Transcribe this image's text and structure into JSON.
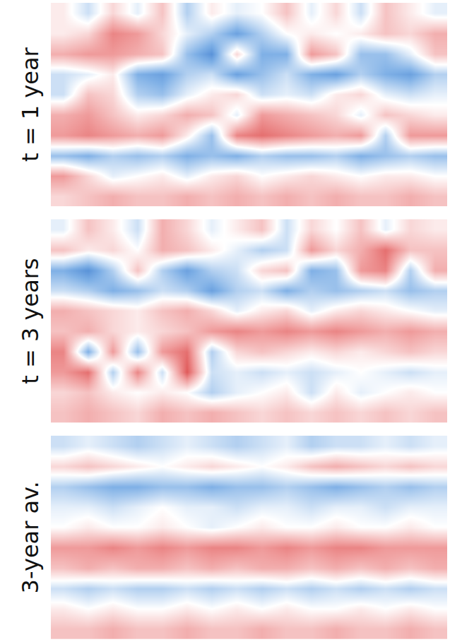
{
  "chart_data": [
    {
      "type": "heatmap",
      "title": "t = 1 year",
      "zlim": [
        -1,
        1
      ],
      "tick_labels": false,
      "cells": [
        [
          0.1,
          -0.2,
          0.2,
          -0.1,
          0.3,
          -0.3,
          0.1,
          -0.1,
          0.0,
          0.3,
          -0.1,
          0.2,
          -0.2,
          0.3,
          0.1,
          -0.1
        ],
        [
          0.1,
          0.2,
          0.6,
          0.5,
          0.2,
          -0.1,
          -0.3,
          -0.6,
          -0.3,
          0.0,
          0.1,
          0.0,
          0.1,
          0.3,
          0.2,
          0.4
        ],
        [
          0.4,
          0.5,
          0.5,
          0.4,
          0.3,
          -0.4,
          -0.7,
          0.2,
          -0.5,
          -0.5,
          0.5,
          0.3,
          -0.4,
          -0.4,
          -0.1,
          0.3
        ],
        [
          -0.2,
          -0.1,
          0.1,
          -0.5,
          -0.6,
          -0.3,
          -0.2,
          -0.6,
          -0.4,
          -0.2,
          -0.5,
          -0.6,
          -0.3,
          -0.5,
          -0.6,
          -0.3
        ],
        [
          -0.2,
          0.3,
          0.2,
          -0.3,
          -0.4,
          -0.1,
          0.1,
          0.2,
          -0.2,
          -0.1,
          -0.2,
          0.1,
          0.2,
          -0.1,
          -0.2,
          -0.1
        ],
        [
          0.4,
          0.5,
          0.3,
          0.1,
          0.2,
          0.4,
          0.3,
          -0.1,
          0.5,
          0.4,
          0.3,
          0.2,
          -0.1,
          0.3,
          0.2,
          0.1
        ],
        [
          0.5,
          0.6,
          0.5,
          0.4,
          0.5,
          0.1,
          -0.4,
          0.6,
          0.7,
          0.6,
          0.5,
          0.4,
          0.5,
          -0.3,
          0.5,
          0.5
        ],
        [
          -0.4,
          -0.5,
          -0.3,
          -0.4,
          -0.3,
          -0.5,
          -0.4,
          -0.5,
          -0.3,
          -0.4,
          -0.4,
          -0.3,
          -0.5,
          -0.4,
          -0.3,
          -0.4
        ],
        [
          0.5,
          0.2,
          -0.1,
          0.0,
          0.1,
          -0.1,
          0.1,
          0.2,
          0.0,
          0.1,
          0.2,
          0.1,
          0.0,
          0.1,
          0.1,
          0.0
        ],
        [
          0.2,
          0.3,
          0.4,
          0.3,
          0.3,
          0.4,
          0.3,
          0.4,
          0.3,
          0.4,
          0.3,
          0.4,
          0.3,
          0.3,
          0.4,
          0.3
        ]
      ]
    },
    {
      "type": "heatmap",
      "title": "t = 3 years",
      "zlim": [
        -1,
        1
      ],
      "tick_labels": false,
      "cells": [
        [
          -0.1,
          0.3,
          0.1,
          -0.2,
          0.4,
          0.2,
          -0.1,
          0.1,
          0.3,
          -0.2,
          0.2,
          0.0,
          0.3,
          -0.1,
          0.2,
          0.1
        ],
        [
          0.3,
          0.1,
          0.2,
          0.0,
          0.4,
          0.3,
          0.1,
          -0.1,
          -0.3,
          -0.2,
          0.5,
          0.2,
          0.4,
          0.7,
          0.3,
          0.3
        ],
        [
          -0.5,
          -0.7,
          -0.3,
          0.3,
          -0.3,
          -0.6,
          -0.3,
          -0.2,
          0.2,
          0.3,
          -0.5,
          -0.4,
          0.5,
          0.6,
          -0.3,
          0.4
        ],
        [
          -0.2,
          -0.3,
          -0.5,
          -0.4,
          -0.2,
          -0.3,
          -0.6,
          -0.3,
          -0.2,
          -0.5,
          -0.3,
          -0.4,
          -0.3,
          -0.2,
          -0.4,
          -0.3
        ],
        [
          0.4,
          0.3,
          0.2,
          0.1,
          0.3,
          0.4,
          0.2,
          -0.1,
          0.1,
          0.2,
          -0.1,
          0.1,
          0.2,
          0.1,
          0.0,
          -0.1
        ],
        [
          0.3,
          0.4,
          0.2,
          0.1,
          0.2,
          0.3,
          0.5,
          0.6,
          0.5,
          0.6,
          0.5,
          0.6,
          0.5,
          0.4,
          0.5,
          0.4
        ],
        [
          0.6,
          -0.5,
          0.5,
          -0.4,
          0.5,
          0.7,
          -0.3,
          0.2,
          0.3,
          0.2,
          0.1,
          0.2,
          0.1,
          0.2,
          0.3,
          0.2
        ],
        [
          0.5,
          0.7,
          -0.3,
          0.6,
          -0.2,
          0.8,
          -0.2,
          -0.1,
          -0.2,
          -0.1,
          -0.2,
          -0.1,
          0.0,
          -0.1,
          -0.2,
          -0.1
        ],
        [
          0.2,
          0.3,
          0.1,
          0.0,
          0.1,
          0.0,
          -0.3,
          -0.1,
          0.0,
          0.1,
          -0.2,
          0.1,
          -0.1,
          0.0,
          0.1,
          0.0
        ],
        [
          0.3,
          0.4,
          0.3,
          0.2,
          0.4,
          0.3,
          0.4,
          0.3,
          0.2,
          0.3,
          0.2,
          0.3,
          0.2,
          0.3,
          0.2,
          0.3
        ]
      ]
    },
    {
      "type": "heatmap",
      "title": "3-year av.",
      "zlim": [
        -1,
        1
      ],
      "tick_labels": false,
      "cells": [
        [
          -0.2,
          -0.1,
          -0.2,
          -0.3,
          -0.2,
          -0.1,
          -0.2,
          -0.3,
          -0.2,
          -0.1,
          -0.3,
          -0.2,
          -0.2,
          -0.1,
          -0.2,
          -0.1
        ],
        [
          0.2,
          0.3,
          0.2,
          0.1,
          0.0,
          0.1,
          0.2,
          0.1,
          0.0,
          0.1,
          0.3,
          0.4,
          0.3,
          0.2,
          0.3,
          0.2
        ],
        [
          -0.3,
          -0.4,
          -0.5,
          -0.5,
          -0.4,
          -0.4,
          -0.5,
          -0.4,
          -0.4,
          -0.3,
          -0.4,
          -0.5,
          -0.4,
          -0.3,
          -0.4,
          -0.3
        ],
        [
          -0.1,
          -0.1,
          -0.2,
          -0.1,
          0.0,
          -0.1,
          -0.1,
          -0.2,
          -0.1,
          -0.1,
          -0.2,
          -0.1,
          -0.1,
          -0.2,
          -0.1,
          -0.1
        ],
        [
          0.0,
          0.1,
          0.0,
          0.0,
          0.1,
          0.0,
          -0.1,
          0.0,
          0.1,
          0.0,
          0.0,
          0.1,
          0.0,
          0.0,
          0.1,
          0.0
        ],
        [
          0.5,
          0.5,
          0.6,
          0.5,
          0.6,
          0.5,
          0.6,
          0.6,
          0.5,
          0.6,
          0.5,
          0.6,
          0.6,
          0.5,
          0.5,
          0.5
        ],
        [
          0.3,
          0.4,
          0.3,
          0.4,
          0.4,
          0.3,
          0.4,
          0.3,
          0.4,
          0.4,
          0.3,
          0.4,
          0.3,
          0.4,
          0.3,
          0.4
        ],
        [
          -0.2,
          -0.3,
          -0.2,
          -0.3,
          -0.3,
          -0.2,
          -0.3,
          -0.2,
          -0.3,
          -0.2,
          -0.3,
          -0.2,
          -0.3,
          -0.2,
          -0.3,
          -0.2
        ],
        [
          0.1,
          0.0,
          0.1,
          0.0,
          0.0,
          0.1,
          0.0,
          0.1,
          0.0,
          0.1,
          0.0,
          0.0,
          0.1,
          0.0,
          0.1,
          0.0
        ],
        [
          0.3,
          0.3,
          0.4,
          0.3,
          0.3,
          0.4,
          0.3,
          0.3,
          0.4,
          0.3,
          0.3,
          0.4,
          0.3,
          0.3,
          0.4,
          0.3
        ]
      ]
    }
  ]
}
